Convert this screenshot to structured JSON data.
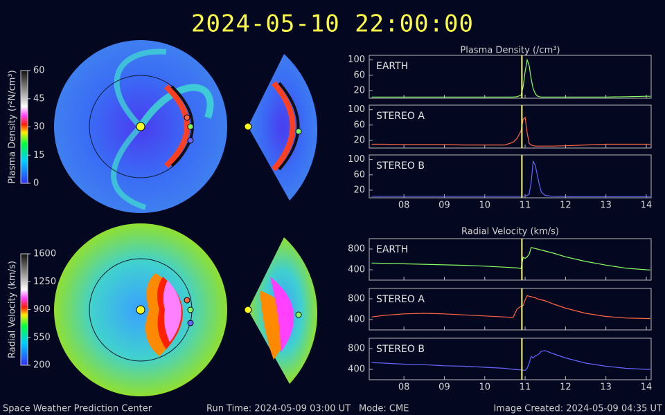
{
  "header": {
    "title": "2024-05-10 22:00:00"
  },
  "footer": {
    "center": "Space Weather Prediction Center",
    "run_time": "Run Time: 2024-05-09 03:00 UT",
    "mode": "Mode: CME",
    "created": "Image Created: 2024-05-09 04:35 UT"
  },
  "colorbars": [
    {
      "label": "Plasma Density (r²N/cm³)",
      "lim": [
        0,
        60
      ],
      "ticks": [
        0,
        15,
        30,
        45,
        60
      ]
    },
    {
      "label": "Radial Velocity (km/s)",
      "lim": [
        200,
        1600
      ],
      "ticks": [
        200,
        550,
        900,
        1250,
        1600
      ]
    }
  ],
  "chart_data": [
    {
      "type": "line",
      "title": "Plasma Density (/cm³)",
      "x": [
        7.2,
        7.5,
        8,
        8.5,
        9,
        9.5,
        10,
        10.5,
        10.7,
        10.8,
        10.9,
        10.95,
        11,
        11.05,
        11.1,
        11.15,
        11.2,
        11.25,
        11.3,
        11.35,
        11.4,
        11.5,
        11.7,
        12,
        12.5,
        13,
        13.5,
        14,
        14.1
      ],
      "xlim": [
        7.14,
        14.12
      ],
      "xticks": [
        {
          "value": 8,
          "label": "08"
        },
        {
          "value": 9,
          "label": "09"
        },
        10,
        11,
        12,
        13,
        14
      ],
      "ylim": [
        0,
        112
      ],
      "yticks": [
        20,
        60,
        100
      ],
      "vline": 10.92,
      "vline_color": "#ffff66",
      "series": [
        {
          "name": "EARTH",
          "color": "#88ff66",
          "values": [
            3,
            3,
            3,
            3,
            3,
            3,
            3,
            3,
            3,
            4,
            8,
            30,
            70,
            100,
            85,
            50,
            25,
            12,
            6,
            4,
            3,
            3,
            3,
            3,
            3,
            3,
            4,
            5,
            5
          ]
        },
        {
          "name": "STEREO A",
          "color": "#ff6644",
          "values": [
            10,
            10,
            9,
            9,
            9,
            8,
            8,
            8,
            15,
            25,
            45,
            75,
            80,
            40,
            12,
            8,
            6,
            5,
            5,
            5,
            5,
            5,
            5,
            6,
            8,
            10,
            10,
            10,
            10
          ]
        },
        {
          "name": "STEREO B",
          "color": "#6666ff",
          "values": [
            4,
            4,
            4,
            4,
            4,
            4,
            4,
            4,
            4,
            4,
            4,
            4,
            5,
            6,
            10,
            40,
            95,
            85,
            60,
            35,
            15,
            6,
            4,
            3,
            3,
            3,
            3,
            3,
            3
          ]
        }
      ]
    },
    {
      "type": "line",
      "title": "Radial Velocity (km/s)",
      "x": [
        7.2,
        7.5,
        8,
        8.5,
        9,
        9.5,
        10,
        10.5,
        10.7,
        10.8,
        10.9,
        10.95,
        11,
        11.05,
        11.1,
        11.15,
        11.2,
        11.25,
        11.3,
        11.35,
        11.4,
        11.5,
        11.7,
        12,
        12.5,
        13,
        13.5,
        14,
        14.1
      ],
      "xlim": [
        7.14,
        14.12
      ],
      "xticks": [
        {
          "value": 8,
          "label": "08"
        },
        {
          "value": 9,
          "label": "09"
        },
        10,
        11,
        12,
        13,
        14
      ],
      "ylim": [
        200,
        1000
      ],
      "yticks": [
        400,
        800
      ],
      "vline": 10.92,
      "vline_color": "#ffff66",
      "series": [
        {
          "name": "EARTH",
          "color": "#88ff66",
          "values": [
            530,
            525,
            515,
            505,
            495,
            485,
            470,
            450,
            440,
            435,
            425,
            640,
            620,
            650,
            700,
            830,
            820,
            810,
            800,
            790,
            780,
            760,
            720,
            650,
            560,
            490,
            430,
            400,
            395
          ]
        },
        {
          "name": "STEREO A",
          "color": "#ff6644",
          "values": [
            450,
            480,
            510,
            520,
            510,
            490,
            470,
            450,
            440,
            600,
            660,
            670,
            780,
            860,
            850,
            840,
            830,
            820,
            800,
            790,
            780,
            760,
            700,
            620,
            520,
            460,
            430,
            420,
            420
          ]
        },
        {
          "name": "STEREO B",
          "color": "#6666ff",
          "values": [
            530,
            520,
            500,
            490,
            470,
            460,
            440,
            420,
            400,
            395,
            390,
            385,
            380,
            420,
            520,
            650,
            620,
            660,
            680,
            700,
            750,
            760,
            700,
            620,
            520,
            460,
            420,
            400,
            400
          ]
        }
      ]
    }
  ]
}
